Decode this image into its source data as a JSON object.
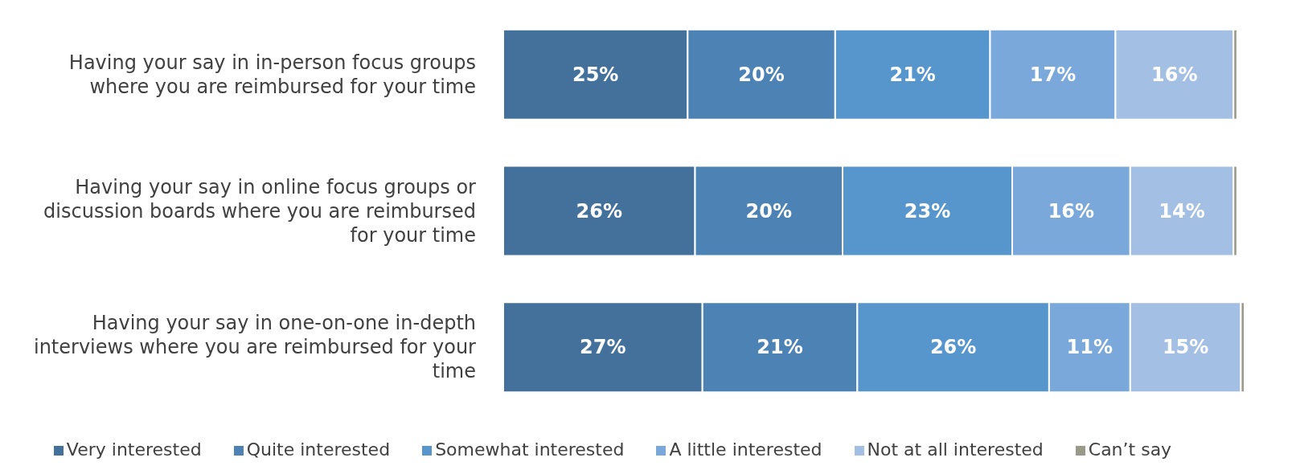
{
  "chart_data": {
    "type": "bar",
    "orientation": "horizontal",
    "stacked": true,
    "legend": "bottom",
    "categories": [
      "Having your say in in-person focus groups where you are reimbursed for your time",
      "Having your say in online focus groups or discussion boards where you are reimbursed for your time",
      "Having your say in one-on-one in-depth interviews where you are reimbursed for your time"
    ],
    "series": [
      {
        "name": "Very interested",
        "color": "#44719c",
        "values": [
          25,
          26,
          27
        ],
        "value_labels": [
          "25%",
          "26%",
          "27%"
        ]
      },
      {
        "name": "Quite interested",
        "color": "#4c82b4",
        "values": [
          20,
          20,
          21
        ],
        "value_labels": [
          "20%",
          "20%",
          "21%"
        ]
      },
      {
        "name": "Somewhat interested",
        "color": "#5795cd",
        "values": [
          21,
          23,
          26
        ],
        "value_labels": [
          "21%",
          "23%",
          "26%"
        ]
      },
      {
        "name": "A little interested",
        "color": "#7aa8da",
        "values": [
          17,
          16,
          11
        ],
        "value_labels": [
          "17%",
          "16%",
          "11%"
        ]
      },
      {
        "name": "Not at all interested",
        "color": "#a3bfe4",
        "values": [
          16,
          14,
          15
        ],
        "value_labels": [
          "16%",
          "14%",
          "15%"
        ]
      },
      {
        "name": "Can’t say",
        "color": "#9a9a88",
        "values": [
          0.5,
          0.5,
          0.5
        ],
        "value_labels": [
          null,
          null,
          null
        ]
      }
    ]
  }
}
